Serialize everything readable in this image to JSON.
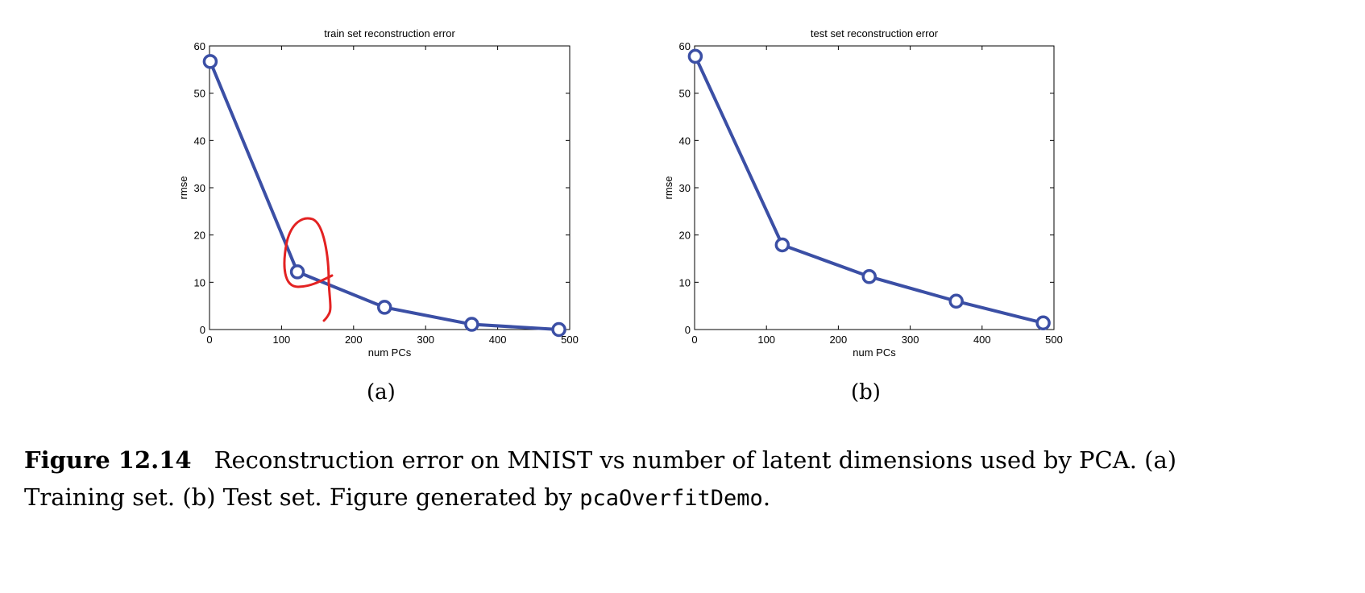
{
  "chart_data": [
    {
      "type": "line",
      "title": "train set reconstruction error",
      "xlabel": "num PCs",
      "ylabel": "rmse",
      "xlim": [
        0,
        500
      ],
      "ylim": [
        0,
        60
      ],
      "xticks": [
        0,
        100,
        200,
        300,
        400,
        500
      ],
      "yticks": [
        0,
        10,
        20,
        30,
        40,
        50,
        60
      ],
      "x": [
        1,
        122,
        243,
        364,
        485
      ],
      "series": [
        {
          "values": [
            56.7,
            12.2,
            4.7,
            1.1,
            0.0
          ],
          "color": "#3b4fa5",
          "marker": "circle"
        }
      ],
      "annotation": "red hand-drawn loop around the point at 122",
      "sub_caption": "(a)"
    },
    {
      "type": "line",
      "title": "test set reconstruction error",
      "xlabel": "num PCs",
      "ylabel": "rmse",
      "xlim": [
        0,
        500
      ],
      "ylim": [
        0,
        60
      ],
      "xticks": [
        0,
        100,
        200,
        300,
        400,
        500
      ],
      "yticks": [
        0,
        10,
        20,
        30,
        40,
        50,
        60
      ],
      "x": [
        1,
        122,
        243,
        364,
        485
      ],
      "series": [
        {
          "values": [
            57.8,
            17.9,
            11.2,
            6.0,
            1.4
          ],
          "color": "#3b4fa5",
          "marker": "circle"
        }
      ],
      "sub_caption": "(b)"
    }
  ],
  "caption": {
    "label": "Figure 12.14",
    "text": "Reconstruction error on MNIST vs number of latent dimensions used by PCA. (a) Training set. (b) Test set. Figure generated by ",
    "code": "pcaOverfitDemo",
    "end": "."
  },
  "colors": {
    "line": "#3b4fa5",
    "annotation": "#e32222"
  }
}
